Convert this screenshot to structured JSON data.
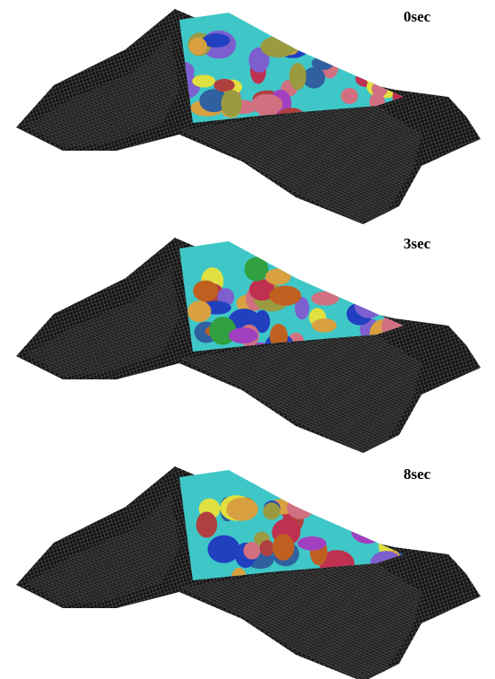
{
  "panels": [
    {
      "label": "0sec"
    },
    {
      "label": "3sec"
    },
    {
      "label": "8sec"
    }
  ]
}
